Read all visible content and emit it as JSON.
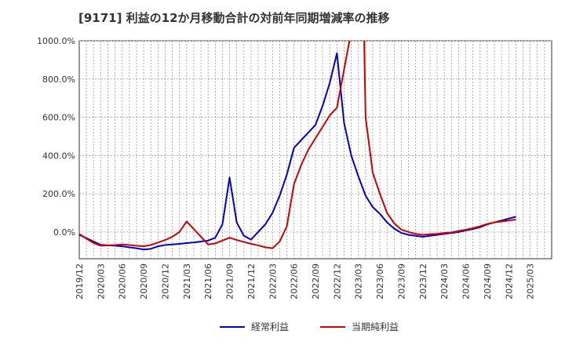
{
  "chart_data": {
    "type": "line",
    "title": "[9171]  利益の12か月移動合計の対前年同期増減率の推移",
    "xlabel": "",
    "ylabel": "",
    "ylim": [
      -140,
      1000
    ],
    "yticks": [
      0,
      200,
      400,
      600,
      800,
      1000
    ],
    "ytick_labels": [
      "0.0%",
      "200.0%",
      "400.0%",
      "600.0%",
      "800.0%",
      "1000.0%"
    ],
    "x_range": [
      0,
      66
    ],
    "x_tick_labels": [
      "2019/12",
      "2020/03",
      "2020/06",
      "2020/09",
      "2020/12",
      "2021/03",
      "2021/06",
      "2021/09",
      "2021/12",
      "2022/03",
      "2022/06",
      "2022/09",
      "2022/12",
      "2023/03",
      "2023/06",
      "2023/09",
      "2023/12",
      "2024/03",
      "2024/06",
      "2024/09",
      "2024/12",
      "2025/03"
    ],
    "grid": true,
    "legend_position": "bottom",
    "series": [
      {
        "name": "経常利益",
        "color": "#0000cc",
        "points": [
          [
            0,
            -15
          ],
          [
            1,
            -32
          ],
          [
            2,
            -50
          ],
          [
            3,
            -67
          ],
          [
            4,
            -70
          ],
          [
            5,
            -72
          ],
          [
            6,
            -75
          ],
          [
            7,
            -80
          ],
          [
            8,
            -85
          ],
          [
            9,
            -92
          ],
          [
            10,
            -88
          ],
          [
            11,
            -75
          ],
          [
            12,
            -68
          ],
          [
            13,
            -65
          ],
          [
            14,
            -62
          ],
          [
            15,
            -58
          ],
          [
            16,
            -55
          ],
          [
            17,
            -50
          ],
          [
            18,
            -45
          ],
          [
            19,
            -30
          ],
          [
            20,
            40
          ],
          [
            21,
            285
          ],
          [
            22,
            50
          ],
          [
            23,
            -20
          ],
          [
            24,
            -40
          ],
          [
            25,
            0
          ],
          [
            26,
            40
          ],
          [
            27,
            100
          ],
          [
            28,
            190
          ],
          [
            29,
            300
          ],
          [
            30,
            440
          ],
          [
            31,
            480
          ],
          [
            32,
            520
          ],
          [
            33,
            560
          ],
          [
            34,
            660
          ],
          [
            35,
            780
          ],
          [
            36,
            935
          ],
          [
            37,
            570
          ],
          [
            38,
            400
          ],
          [
            39,
            290
          ],
          [
            40,
            190
          ],
          [
            41,
            130
          ],
          [
            42,
            95
          ],
          [
            43,
            50
          ],
          [
            44,
            18
          ],
          [
            45,
            -5
          ],
          [
            46,
            -15
          ],
          [
            47,
            -20
          ],
          [
            48,
            -25
          ],
          [
            49,
            -20
          ],
          [
            50,
            -15
          ],
          [
            51,
            -10
          ],
          [
            52,
            -5
          ],
          [
            53,
            0
          ],
          [
            54,
            8
          ],
          [
            55,
            15
          ],
          [
            56,
            25
          ],
          [
            57,
            40
          ],
          [
            58,
            50
          ],
          [
            59,
            60
          ],
          [
            60,
            70
          ],
          [
            61,
            80
          ]
        ]
      },
      {
        "name": "当期純利益",
        "color": "#cc0000",
        "points": [
          [
            0,
            -10
          ],
          [
            1,
            -35
          ],
          [
            2,
            -58
          ],
          [
            3,
            -72
          ],
          [
            4,
            -70
          ],
          [
            5,
            -68
          ],
          [
            6,
            -65
          ],
          [
            7,
            -68
          ],
          [
            8,
            -72
          ],
          [
            9,
            -75
          ],
          [
            10,
            -68
          ],
          [
            11,
            -55
          ],
          [
            12,
            -42
          ],
          [
            13,
            -25
          ],
          [
            14,
            0
          ],
          [
            15,
            55
          ],
          [
            16,
            15
          ],
          [
            17,
            -25
          ],
          [
            18,
            -65
          ],
          [
            19,
            -60
          ],
          [
            20,
            -45
          ],
          [
            21,
            -30
          ],
          [
            22,
            -42
          ],
          [
            23,
            -52
          ],
          [
            24,
            -62
          ],
          [
            25,
            -70
          ],
          [
            26,
            -80
          ],
          [
            27,
            -85
          ],
          [
            28,
            -50
          ],
          [
            29,
            30
          ],
          [
            30,
            250
          ],
          [
            31,
            350
          ],
          [
            32,
            430
          ],
          [
            33,
            490
          ],
          [
            34,
            550
          ],
          [
            35,
            610
          ],
          [
            36,
            650
          ],
          [
            37,
            850
          ],
          [
            37.8,
            1010
          ],
          [
            39.8,
            1010
          ],
          [
            40,
            600
          ],
          [
            41,
            310
          ],
          [
            42,
            200
          ],
          [
            43,
            100
          ],
          [
            44,
            45
          ],
          [
            45,
            12
          ],
          [
            46,
            0
          ],
          [
            47,
            -10
          ],
          [
            48,
            -15
          ],
          [
            49,
            -12
          ],
          [
            50,
            -10
          ],
          [
            51,
            -5
          ],
          [
            52,
            -2
          ],
          [
            53,
            5
          ],
          [
            54,
            12
          ],
          [
            55,
            20
          ],
          [
            56,
            30
          ],
          [
            57,
            42
          ],
          [
            58,
            50
          ],
          [
            59,
            55
          ],
          [
            60,
            60
          ],
          [
            61,
            65
          ]
        ]
      }
    ]
  }
}
